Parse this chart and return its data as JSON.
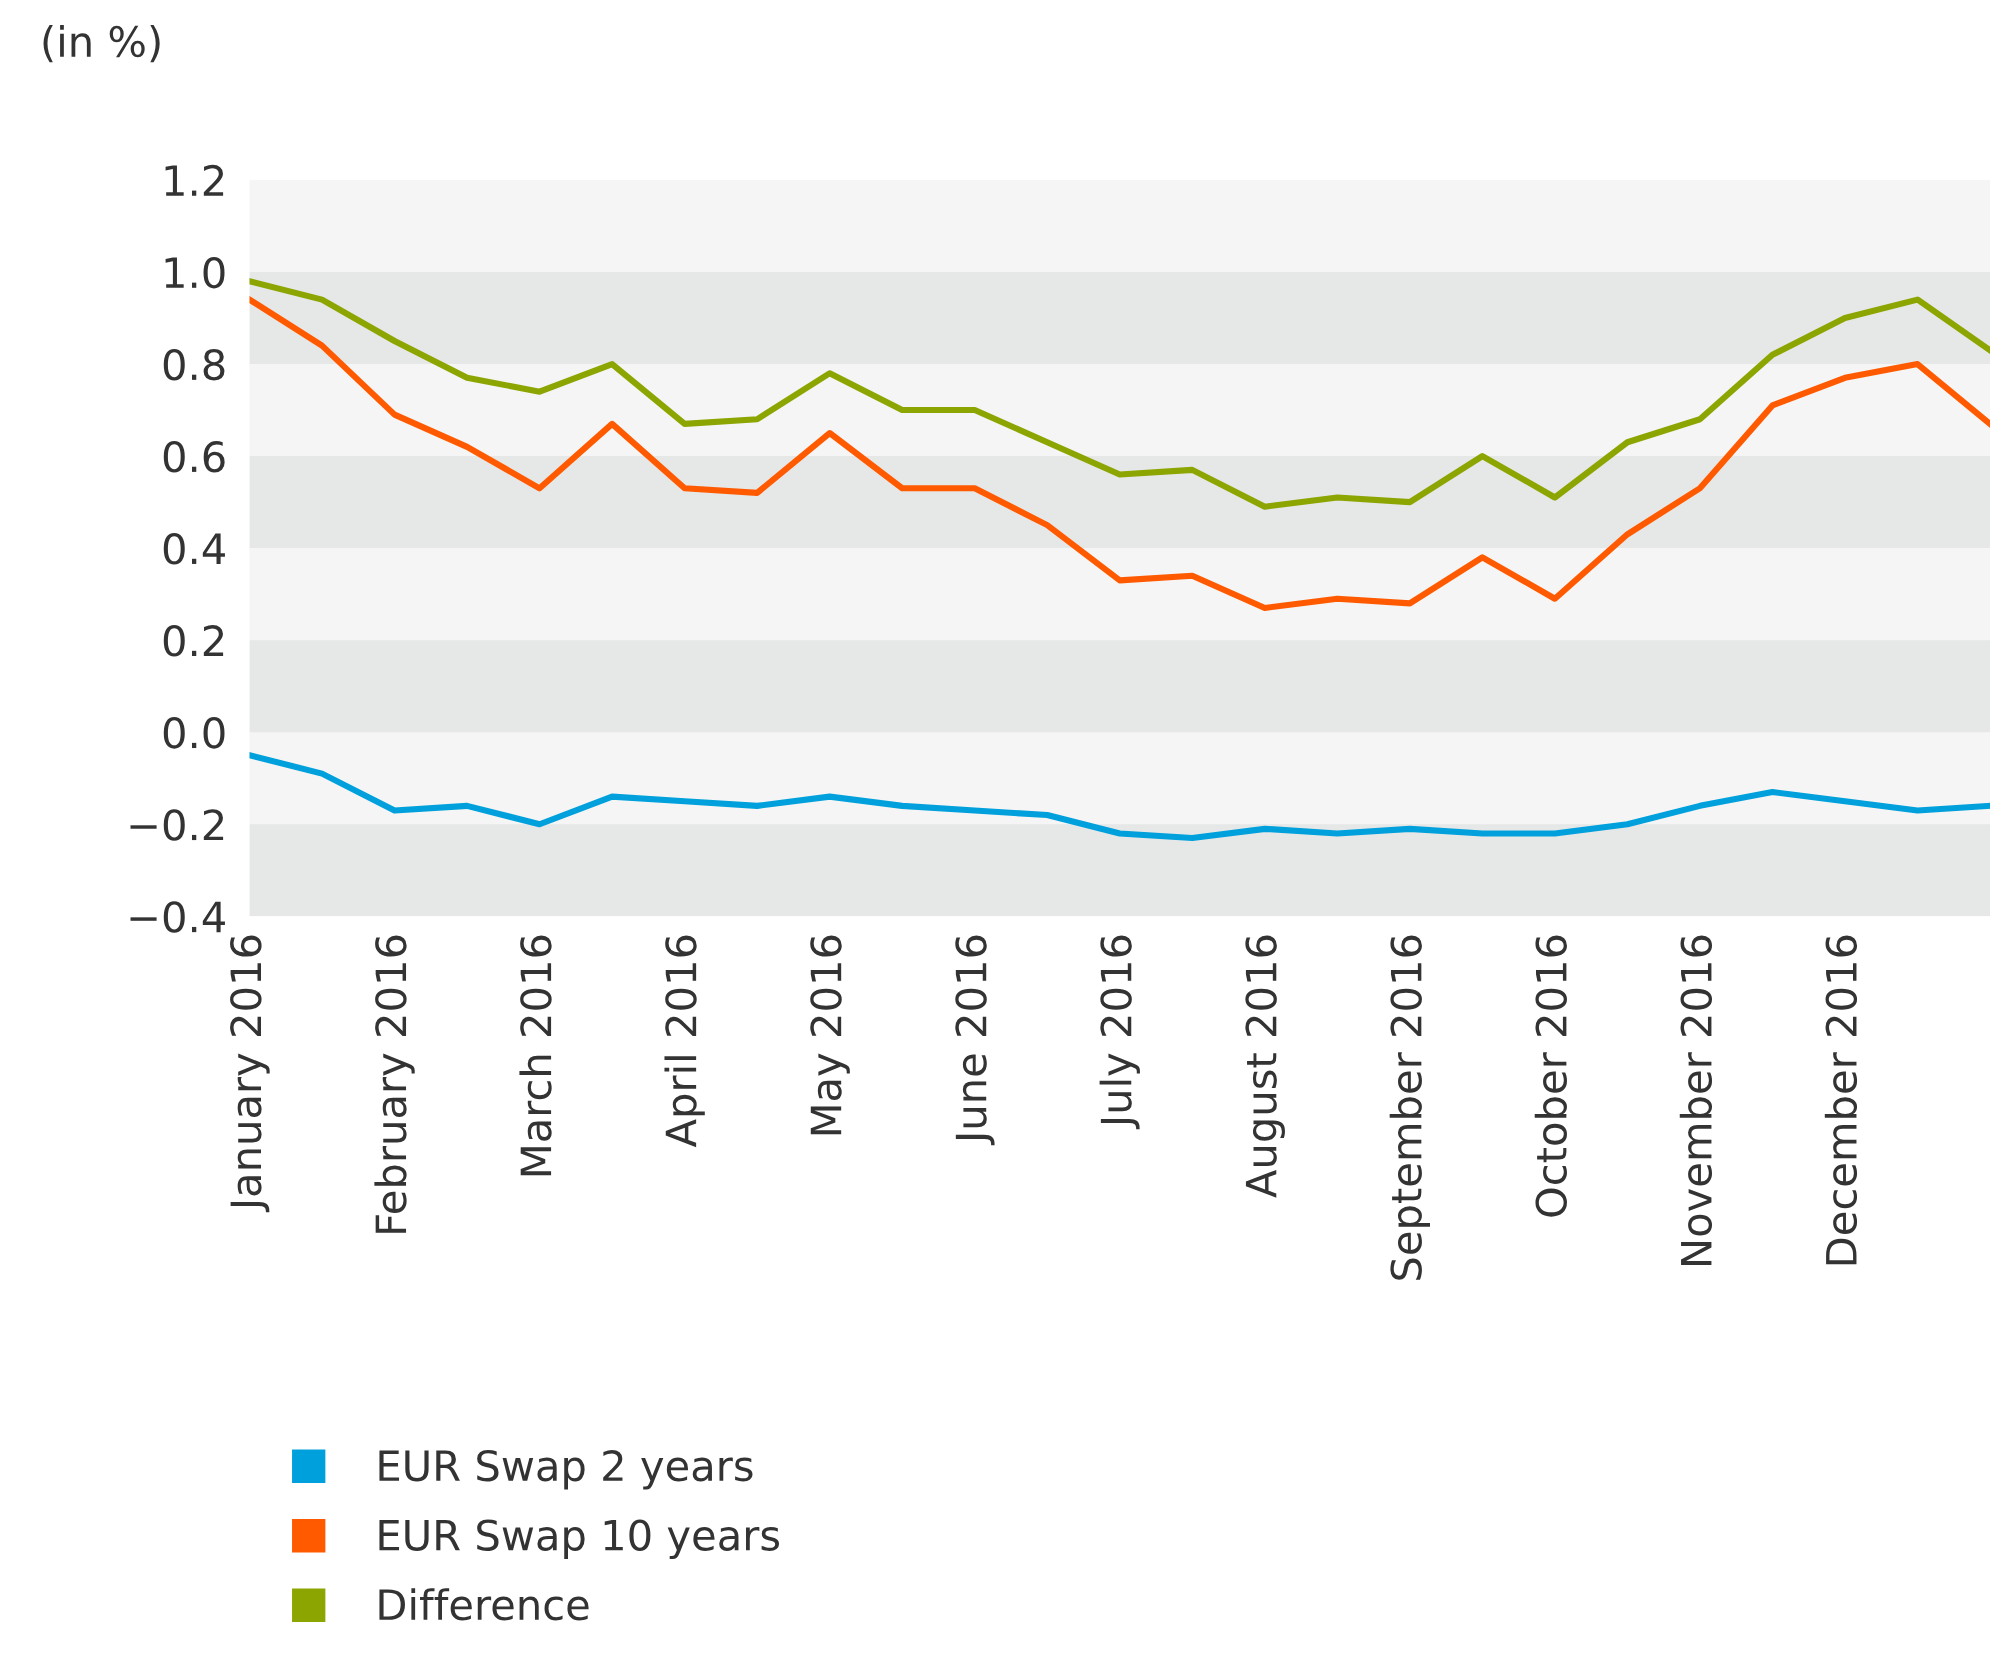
{
  "chart_data": {
    "type": "line",
    "ylabel": "(in %)",
    "categories": [
      "January 2016",
      null,
      "February 2016",
      null,
      "March 2016",
      null,
      "April 2016",
      null,
      "May 2016",
      null,
      "June 2016",
      null,
      "July 2016",
      null,
      "August 2016",
      null,
      "September 2016",
      null,
      "October 2016",
      null,
      "November 2016",
      null,
      "December 2016",
      null,
      null
    ],
    "series": [
      {
        "name": "EUR Swap 2 years",
        "color": "#00a0dc",
        "values": [
          -0.05,
          -0.09,
          -0.17,
          -0.16,
          -0.2,
          -0.14,
          -0.15,
          -0.16,
          -0.14,
          -0.16,
          -0.17,
          -0.18,
          -0.22,
          -0.23,
          -0.21,
          -0.22,
          -0.21,
          -0.22,
          -0.22,
          -0.2,
          -0.16,
          -0.13,
          -0.15,
          -0.17,
          -0.16
        ]
      },
      {
        "name": "EUR Swap 10 years",
        "color": "#ff5a00",
        "values": [
          0.94,
          0.84,
          0.69,
          0.62,
          0.53,
          0.67,
          0.53,
          0.52,
          0.65,
          0.53,
          0.53,
          0.45,
          0.33,
          0.34,
          0.27,
          0.29,
          0.28,
          0.38,
          0.29,
          0.43,
          0.53,
          0.71,
          0.77,
          0.8,
          0.67
        ]
      },
      {
        "name": "Difference",
        "color": "#8ca500",
        "values": [
          0.98,
          0.94,
          0.85,
          0.77,
          0.74,
          0.8,
          0.67,
          0.68,
          0.78,
          0.7,
          0.7,
          0.63,
          0.56,
          0.57,
          0.49,
          0.51,
          0.5,
          0.6,
          0.51,
          0.63,
          0.68,
          0.82,
          0.9,
          0.94,
          0.83
        ]
      }
    ],
    "ylim": [
      -0.4,
      1.2
    ],
    "yticks": [
      {
        "value": -0.4,
        "label": "−0.4"
      },
      {
        "value": -0.2,
        "label": "−0.2"
      },
      {
        "value": 0,
        "label": "0.0"
      },
      0.2,
      0.4,
      0.6,
      0.8,
      {
        "value": 1,
        "label": "1.0"
      },
      1.2
    ],
    "bands": [
      {
        "axis": "y",
        "from": -0.4,
        "to": -0.2,
        "color": "#e6e7e7"
      },
      {
        "axis": "y",
        "from": 0.0,
        "to": 0.2,
        "color": "#e6e7e7"
      },
      {
        "axis": "y",
        "from": 0.4,
        "to": 0.6,
        "color": "#e6e7e7"
      },
      {
        "axis": "y",
        "from": 0.8,
        "to": 1.0,
        "color": "#e6e7e7"
      }
    ],
    "legend": "bottom",
    "marker": "none",
    "line_style": "solid",
    "grid": false
  }
}
